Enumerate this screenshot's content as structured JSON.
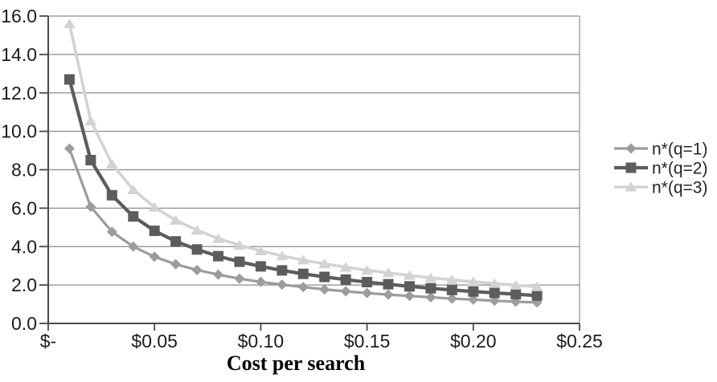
{
  "chart_data": {
    "type": "line",
    "title": "",
    "xlabel": "Cost per search",
    "ylabel": "",
    "xlim": [
      0,
      0.25
    ],
    "ylim": [
      0,
      16
    ],
    "x_ticks": [
      0,
      0.05,
      0.1,
      0.15,
      0.2,
      0.25
    ],
    "x_tick_labels": [
      "$-",
      "$0.05",
      "$0.10",
      "$0.15",
      "$0.20",
      "$0.25"
    ],
    "y_ticks": [
      0,
      2,
      4,
      6,
      8,
      10,
      12,
      14,
      16
    ],
    "y_tick_labels": [
      "0.0",
      "2.0",
      "4.0",
      "6.0",
      "8.0",
      "10.0",
      "12.0",
      "14.0",
      "16.0"
    ],
    "grid": "horizontal-only",
    "legend_position": "right-center",
    "background_color": "#ffffff",
    "grid_color": "#8c8c8c",
    "axis_color": "#4a4a4a",
    "text_color": "#1c1c1c",
    "x": [
      0.01,
      0.02,
      0.03,
      0.04,
      0.05,
      0.06,
      0.07,
      0.08,
      0.09,
      0.1,
      0.11,
      0.12,
      0.13,
      0.14,
      0.15,
      0.16,
      0.17,
      0.18,
      0.19,
      0.2,
      0.21,
      0.22,
      0.23
    ],
    "series": [
      {
        "name": "n*(q=1)",
        "marker": "diamond",
        "color": "#9c9c9c",
        "line_width": 3.2,
        "values": [
          9.1,
          6.07,
          4.77,
          4.0,
          3.47,
          3.08,
          2.78,
          2.54,
          2.33,
          2.16,
          2.02,
          1.89,
          1.77,
          1.67,
          1.58,
          1.5,
          1.43,
          1.36,
          1.29,
          1.24,
          1.18,
          1.13,
          1.09
        ]
      },
      {
        "name": "n*(q=2)",
        "marker": "square",
        "color": "#5c5c5c",
        "line_width": 4.2,
        "values": [
          12.7,
          8.5,
          6.67,
          5.57,
          4.82,
          4.27,
          3.85,
          3.5,
          3.21,
          2.97,
          2.76,
          2.58,
          2.42,
          2.28,
          2.15,
          2.04,
          1.93,
          1.83,
          1.74,
          1.66,
          1.59,
          1.52,
          1.45
        ]
      },
      {
        "name": "n*(q=3)",
        "marker": "triangle",
        "color": "#d3d3d3",
        "line_width": 3.6,
        "values": [
          15.6,
          10.55,
          8.3,
          6.96,
          6.05,
          5.37,
          4.85,
          4.42,
          4.07,
          3.78,
          3.52,
          3.3,
          3.1,
          2.93,
          2.77,
          2.63,
          2.5,
          2.38,
          2.27,
          2.17,
          2.08,
          1.99,
          1.91
        ]
      }
    ]
  }
}
